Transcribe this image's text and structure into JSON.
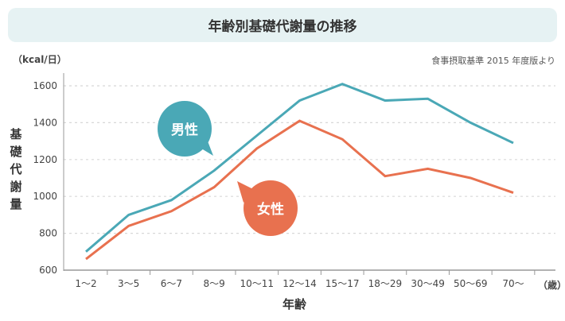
{
  "chart_data": {
    "type": "line",
    "title": "年齢別基礎代謝量の推移",
    "source_note": "食事摂取基準 2015 年度版より",
    "ylabel": "基礎代謝量",
    "yunit": "（kcal/日）",
    "xlabel": "年齢",
    "xunit": "（歳）",
    "categories": [
      "1～2",
      "3～5",
      "6～7",
      "8～9",
      "10～11",
      "12～14",
      "15～17",
      "18～29",
      "30～49",
      "50～69",
      "70～"
    ],
    "ylim": [
      600,
      1600
    ],
    "yticks": [
      600,
      800,
      1000,
      1200,
      1400,
      1600
    ],
    "grid": true,
    "series": [
      {
        "name": "男性",
        "color": "#4aa8b6",
        "values": [
          700,
          900,
          980,
          1140,
          1330,
          1520,
          1610,
          1520,
          1530,
          1400,
          1290
        ]
      },
      {
        "name": "女性",
        "color": "#e8714f",
        "values": [
          660,
          840,
          920,
          1050,
          1260,
          1410,
          1310,
          1110,
          1150,
          1100,
          1020
        ]
      }
    ]
  }
}
